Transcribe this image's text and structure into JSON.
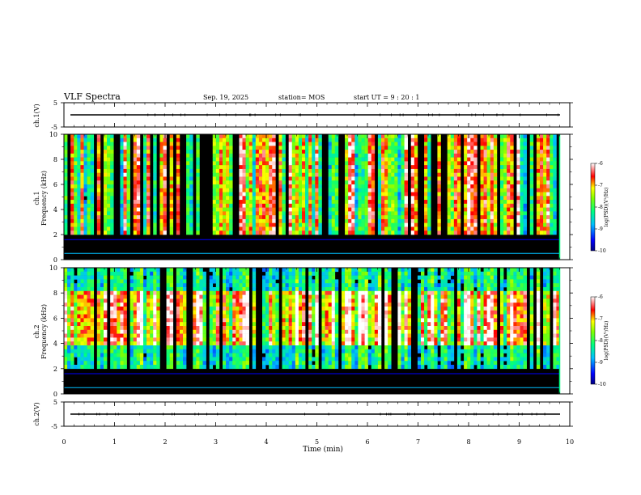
{
  "header": {
    "title": "VLF Spectra",
    "date": "Sep. 19, 2025",
    "station": "station= MOS",
    "start": "start  UT  =   9  : 20 : 1"
  },
  "chart_data": [
    {
      "type": "line",
      "name": "ch1-waveform",
      "ylabel": "ch.1(V)",
      "ylim": [
        -5,
        5
      ],
      "yticks": [
        "5",
        "-5"
      ],
      "series": [
        {
          "name": "ch.1",
          "baseline": 0.0
        }
      ]
    },
    {
      "type": "heatmap",
      "name": "ch1-spectrogram",
      "ylabel_line1": "ch.1",
      "ylabel_line2": "Frequency (kHz)",
      "ylim": [
        0,
        10
      ],
      "yticks": [
        "0",
        "2",
        "4",
        "6",
        "8",
        "10"
      ],
      "xlim": [
        0,
        10
      ],
      "data_end_min": 9.8,
      "strong_band_khz": [
        2,
        10
      ],
      "colorbar": {
        "label": "log(PSD)(V²/Hz)",
        "ticks": [
          "-6",
          "-7",
          "-8",
          "-9",
          "-10"
        ],
        "range": [
          -10,
          -6
        ]
      }
    },
    {
      "type": "heatmap",
      "name": "ch2-spectrogram",
      "ylabel_line1": "ch.2",
      "ylabel_line2": "Frequency (kHz)",
      "ylim": [
        0,
        10
      ],
      "yticks": [
        "0",
        "2",
        "4",
        "6",
        "8",
        "10"
      ],
      "xlim": [
        0,
        10
      ],
      "data_end_min": 9.8,
      "strong_band_khz": [
        4,
        8
      ],
      "colorbar": {
        "label": "log(PSD)(V²/Hz)",
        "ticks": [
          "-6",
          "-7",
          "-8",
          "-9",
          "-10"
        ],
        "range": [
          -10,
          -6
        ]
      }
    },
    {
      "type": "line",
      "name": "ch2-waveform",
      "ylabel": "ch.2(V)",
      "ylim": [
        -5,
        5
      ],
      "yticks": [
        "5",
        "-5"
      ],
      "xlabel": "Time  (min)",
      "xlim": [
        0,
        10
      ],
      "xticks": [
        "0",
        "1",
        "2",
        "3",
        "4",
        "5",
        "6",
        "7",
        "8",
        "9",
        "10"
      ],
      "series": [
        {
          "name": "ch.2",
          "baseline": 0.0
        }
      ]
    }
  ]
}
